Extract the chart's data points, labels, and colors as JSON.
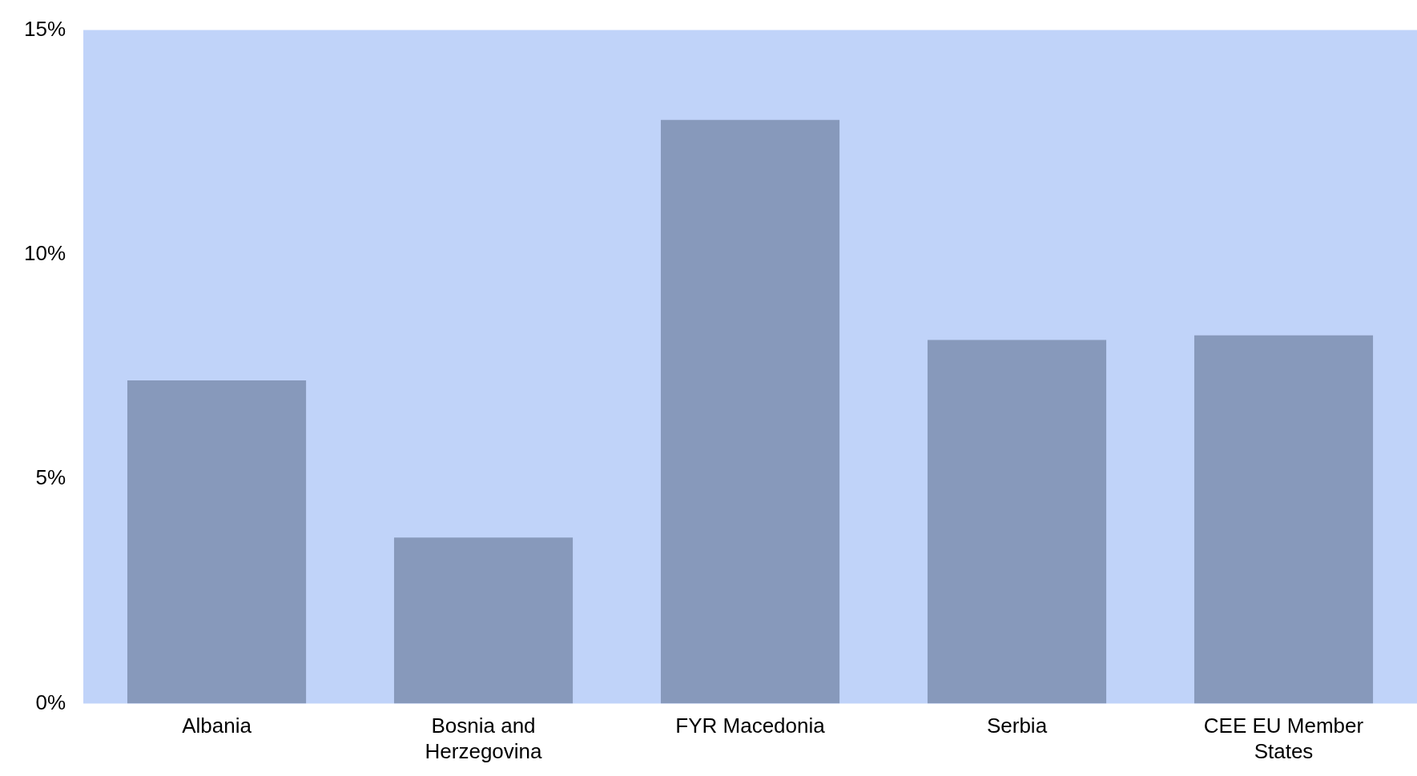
{
  "chart_data": {
    "type": "bar",
    "categories": [
      "Albania",
      "Bosnia and Herzegovina",
      "FYR Macedonia",
      "Serbia",
      "CEE EU Member States"
    ],
    "values": [
      7.2,
      3.7,
      13.0,
      8.1,
      8.2
    ],
    "color": "#8799bb",
    "ylim": [
      0,
      15
    ],
    "yticks": [
      {
        "value": 0,
        "label": "0%"
      },
      {
        "value": 5,
        "label": "5%"
      },
      {
        "value": 10,
        "label": "10%"
      },
      {
        "value": 15,
        "label": "15%"
      }
    ],
    "grid": false,
    "legend": false
  }
}
